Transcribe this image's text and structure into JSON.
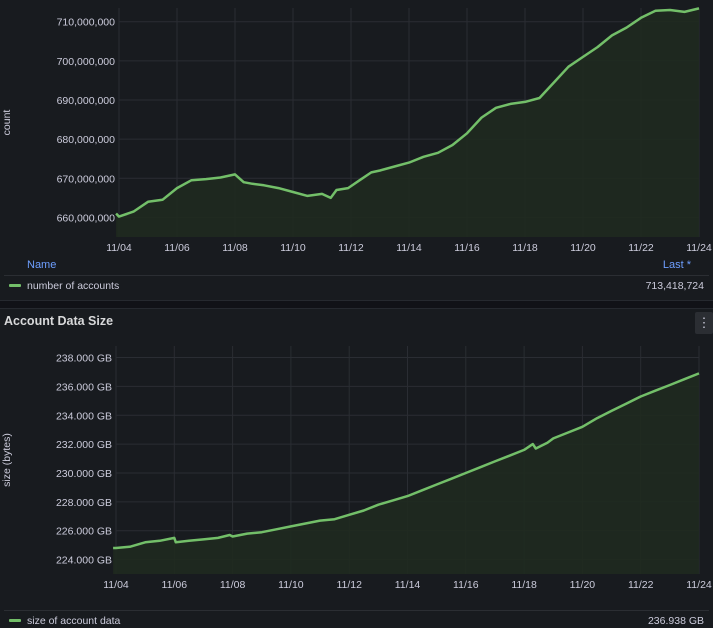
{
  "panels": [
    {
      "title": "",
      "legend": {
        "name_header": "Name",
        "last_header": "Last *",
        "series_name": "number of accounts",
        "last_value": "713,418,724"
      }
    },
    {
      "title": "Account Data Size",
      "menu_icon": "vertical-ellipsis-icon",
      "legend": {
        "name_header": "Name",
        "last_header": "Last *",
        "series_name": "size of account data",
        "last_value": "236.938 GB"
      }
    }
  ],
  "colors": {
    "series": "#73bf69",
    "fill": "#1f2a1f",
    "grid": "#2a2d33",
    "background": "#181b1f",
    "legend_header": "#6e9fff"
  },
  "chart_data": [
    {
      "type": "area",
      "title": "",
      "xlabel": "",
      "ylabel": "count",
      "x_ticks": [
        "11/04",
        "11/06",
        "11/08",
        "11/10",
        "11/12",
        "11/14",
        "11/16",
        "11/18",
        "11/20",
        "11/22",
        "11/24"
      ],
      "y_ticks": [
        "660,000,000",
        "670,000,000",
        "680,000,000",
        "690,000,000",
        "700,000,000",
        "710,000,000"
      ],
      "ylim": [
        655000000,
        713500000
      ],
      "grid": true,
      "series": [
        {
          "name": "number of accounts",
          "x": [
            3.9,
            4.0,
            4.5,
            5.0,
            5.5,
            6.0,
            6.5,
            7.0,
            7.5,
            8.0,
            8.3,
            8.6,
            9.0,
            9.5,
            10.0,
            10.5,
            11.0,
            11.3,
            11.5,
            11.9,
            12.3,
            12.7,
            13.0,
            13.5,
            14.0,
            14.5,
            15.0,
            15.5,
            16.0,
            16.5,
            17.0,
            17.5,
            18.0,
            18.5,
            19.0,
            19.5,
            20.0,
            20.5,
            21.0,
            21.5,
            22.0,
            22.5,
            23.0,
            23.5,
            24.0
          ],
          "y": [
            661000000,
            660200000,
            661500000,
            664000000,
            664500000,
            667500000,
            669500000,
            669800000,
            670200000,
            671000000,
            669000000,
            668600000,
            668200000,
            667500000,
            666500000,
            665500000,
            666000000,
            665000000,
            667000000,
            667500000,
            669500000,
            671500000,
            672000000,
            673000000,
            674000000,
            675500000,
            676500000,
            678500000,
            681500000,
            685500000,
            688000000,
            689000000,
            689500000,
            690500000,
            694500000,
            698500000,
            701000000,
            703500000,
            706500000,
            708500000,
            711000000,
            712800000,
            713000000,
            712500000,
            713400000
          ]
        }
      ]
    },
    {
      "type": "area",
      "title": "Account Data Size",
      "xlabel": "",
      "ylabel": "size (bytes)",
      "x_ticks": [
        "11/04",
        "11/06",
        "11/08",
        "11/10",
        "11/12",
        "11/14",
        "11/16",
        "11/18",
        "11/20",
        "11/22",
        "11/24"
      ],
      "y_ticks": [
        "224.000 GB",
        "226.000 GB",
        "228.000 GB",
        "230.000 GB",
        "232.000 GB",
        "234.000 GB",
        "236.000 GB",
        "238.000 GB"
      ],
      "ylim": [
        223,
        238.8
      ],
      "grid": true,
      "series": [
        {
          "name": "size of account data",
          "x": [
            3.9,
            4.0,
            4.5,
            5.0,
            5.5,
            6.0,
            6.05,
            6.5,
            7.0,
            7.5,
            7.9,
            8.0,
            8.5,
            9.0,
            9.5,
            10.0,
            10.5,
            11.0,
            11.5,
            12.0,
            12.5,
            13.0,
            13.5,
            14.0,
            14.5,
            15.0,
            15.5,
            16.0,
            16.5,
            17.0,
            17.5,
            18.0,
            18.3,
            18.4,
            18.8,
            19.0,
            19.5,
            20.0,
            20.5,
            21.0,
            21.5,
            22.0,
            22.5,
            23.0,
            23.5,
            24.0
          ],
          "y": [
            224.8,
            224.8,
            224.9,
            225.2,
            225.3,
            225.5,
            225.2,
            225.3,
            225.4,
            225.5,
            225.7,
            225.6,
            225.8,
            225.9,
            226.1,
            226.3,
            226.5,
            226.7,
            226.8,
            227.1,
            227.4,
            227.8,
            228.1,
            228.4,
            228.8,
            229.2,
            229.6,
            230.0,
            230.4,
            230.8,
            231.2,
            231.6,
            232.0,
            231.7,
            232.1,
            232.4,
            232.8,
            233.2,
            233.8,
            234.3,
            234.8,
            235.3,
            235.7,
            236.1,
            236.5,
            236.9
          ]
        }
      ]
    }
  ]
}
